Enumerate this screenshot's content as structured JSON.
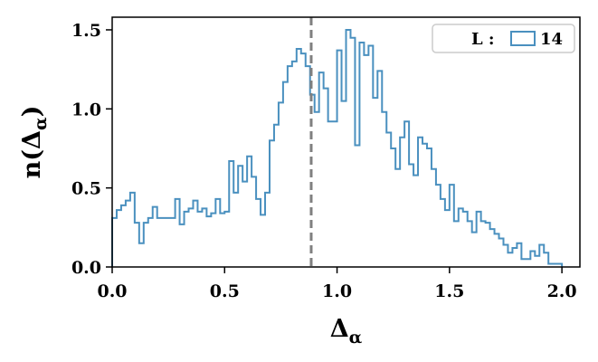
{
  "chart_data": {
    "type": "histogram",
    "xlabel": "Δα",
    "ylabel": "n(Δα)",
    "xlim": [
      0.0,
      2.08
    ],
    "ylim": [
      0.0,
      1.58
    ],
    "x_ticks": [
      0.0,
      0.5,
      1.0,
      1.5,
      2.0
    ],
    "x_tick_labels": [
      "0.0",
      "0.5",
      "1.0",
      "1.5",
      "2.0"
    ],
    "y_ticks": [
      0.0,
      0.5,
      1.0,
      1.5
    ],
    "y_tick_labels": [
      "0.0",
      "0.5",
      "1.0",
      "1.5"
    ],
    "grid": false,
    "legend": {
      "placement": "top-right",
      "title": "L :",
      "entries": [
        "14"
      ]
    },
    "vline": {
      "x": 0.885,
      "style": "dashed",
      "color": "#808080"
    },
    "series": [
      {
        "name": "14",
        "color": "#4a90bf",
        "bin_edges": [
          0.0,
          0.02,
          0.04,
          0.06,
          0.08,
          0.1,
          0.12,
          0.14,
          0.16,
          0.18,
          0.2,
          0.22,
          0.24,
          0.26,
          0.28,
          0.3,
          0.32,
          0.34,
          0.36,
          0.38,
          0.4,
          0.42,
          0.44,
          0.46,
          0.48,
          0.5,
          0.52,
          0.54,
          0.56,
          0.58,
          0.6,
          0.62,
          0.64,
          0.66,
          0.68,
          0.7,
          0.72,
          0.74,
          0.76,
          0.78,
          0.8,
          0.82,
          0.84,
          0.86,
          0.88,
          0.9,
          0.92,
          0.94,
          0.96,
          0.98,
          1.0,
          1.02,
          1.04,
          1.06,
          1.08,
          1.1,
          1.12,
          1.14,
          1.16,
          1.18,
          1.2,
          1.22,
          1.24,
          1.26,
          1.28,
          1.3,
          1.32,
          1.34,
          1.36,
          1.38,
          1.4,
          1.42,
          1.44,
          1.46,
          1.48,
          1.5,
          1.52,
          1.54,
          1.56,
          1.58,
          1.6,
          1.62,
          1.64,
          1.66,
          1.68,
          1.7,
          1.72,
          1.74,
          1.76,
          1.78,
          1.8,
          1.82,
          1.84,
          1.86,
          1.88,
          1.9,
          1.92,
          1.94,
          1.96,
          1.98
        ],
        "values": [
          0.31,
          0.36,
          0.39,
          0.42,
          0.47,
          0.28,
          0.15,
          0.28,
          0.31,
          0.38,
          0.31,
          0.31,
          0.31,
          0.31,
          0.43,
          0.27,
          0.35,
          0.37,
          0.42,
          0.35,
          0.37,
          0.32,
          0.34,
          0.43,
          0.34,
          0.35,
          0.67,
          0.47,
          0.64,
          0.54,
          0.7,
          0.57,
          0.43,
          0.33,
          0.47,
          0.8,
          0.9,
          1.04,
          1.17,
          1.27,
          1.3,
          1.38,
          1.35,
          1.27,
          1.09,
          0.98,
          1.23,
          1.13,
          0.92,
          0.92,
          1.37,
          1.05,
          1.5,
          1.45,
          0.77,
          1.42,
          1.34,
          1.4,
          1.07,
          1.24,
          0.98,
          0.85,
          0.75,
          0.62,
          0.82,
          0.92,
          0.65,
          0.58,
          0.82,
          0.78,
          0.75,
          0.62,
          0.52,
          0.43,
          0.36,
          0.52,
          0.29,
          0.37,
          0.35,
          0.29,
          0.22,
          0.35,
          0.29,
          0.28,
          0.24,
          0.21,
          0.18,
          0.14,
          0.09,
          0.12,
          0.15,
          0.05,
          0.05,
          0.1,
          0.07,
          0.14,
          0.09,
          0.02,
          0.02,
          0.02
        ],
        "last_edge": 2.0
      }
    ]
  }
}
